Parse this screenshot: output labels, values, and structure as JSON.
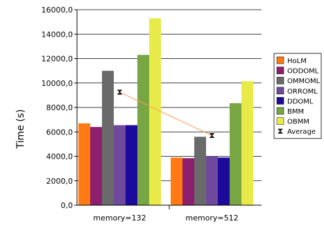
{
  "chart_data": {
    "type": "bar",
    "xlabel": "",
    "ylabel": "Time (s)",
    "ylim": [
      0,
      16000
    ],
    "yticks": [
      0,
      2000,
      4000,
      6000,
      8000,
      10000,
      12000,
      14000,
      16000
    ],
    "ytick_labels": [
      "0,0",
      "2000,0",
      "4000,0",
      "6000,0",
      "8000,0",
      "10000,0",
      "12000,0",
      "14000,0",
      "16000,0"
    ],
    "grid": true,
    "legend_position": "right",
    "categories": [
      "memory=132",
      "memory=512"
    ],
    "series": [
      {
        "name": "HoLM",
        "color": "#ff7a12",
        "values": [
          6700,
          3900
        ]
      },
      {
        "name": "ODDOML",
        "color": "#8e1e6e",
        "values": [
          6400,
          3850
        ]
      },
      {
        "name": "OMMOML",
        "color": "#6a6a6a",
        "values": [
          11000,
          5600
        ]
      },
      {
        "name": "ORROML",
        "color": "#6f4a9c",
        "values": [
          6550,
          4000
        ]
      },
      {
        "name": "DDOML",
        "color": "#1c0a9a",
        "values": [
          6550,
          3900
        ]
      },
      {
        "name": "BMM",
        "color": "#78a642",
        "values": [
          12300,
          8350
        ]
      },
      {
        "name": "OBMM",
        "color": "#e8ea4a",
        "values": [
          15300,
          10150
        ]
      }
    ],
    "average": {
      "name": "Average",
      "color": "#ff9a55",
      "values": [
        9250,
        5700
      ]
    }
  }
}
